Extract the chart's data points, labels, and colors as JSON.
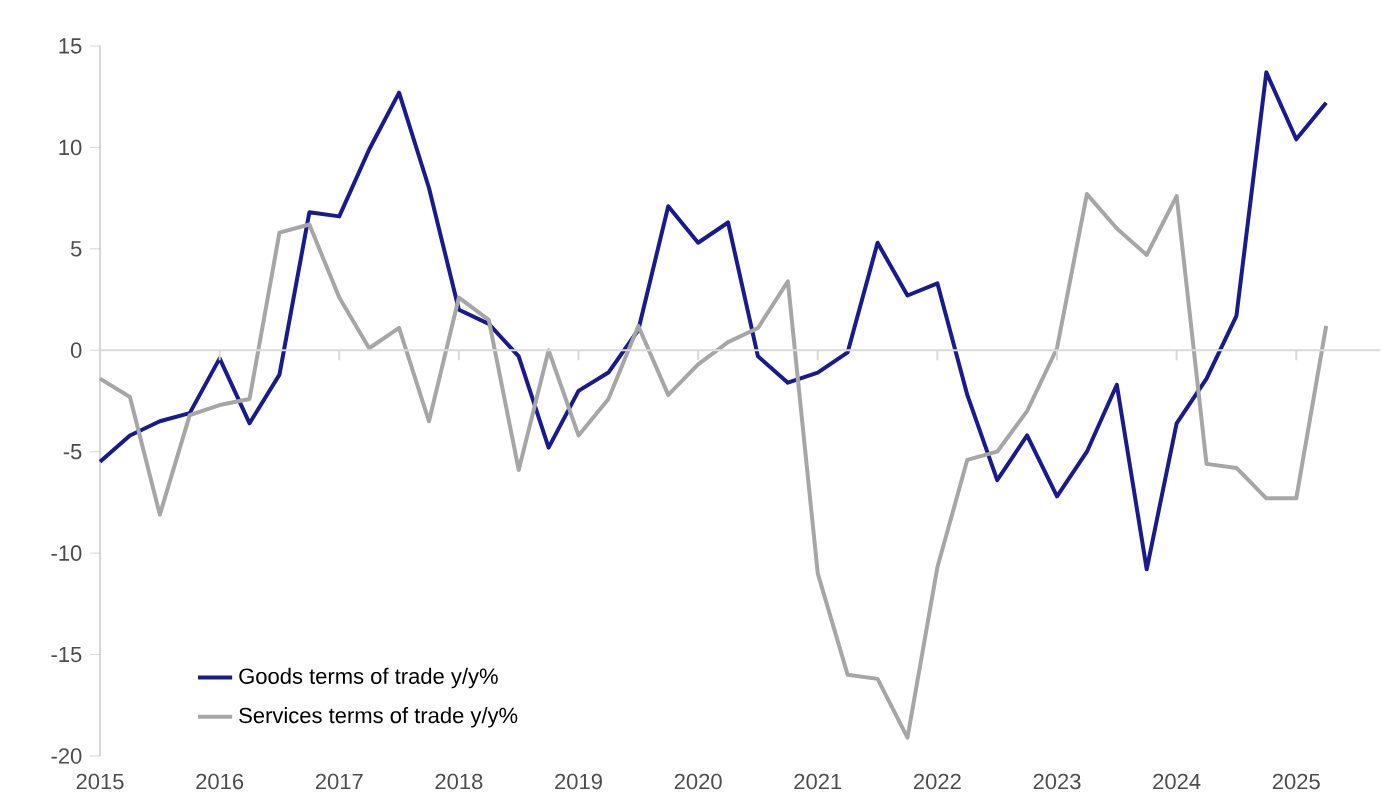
{
  "chart_data": {
    "type": "line",
    "x": [
      2015,
      2015.25,
      2015.5,
      2015.75,
      2016,
      2016.25,
      2016.5,
      2016.75,
      2017,
      2017.25,
      2017.5,
      2017.75,
      2018,
      2018.25,
      2018.5,
      2018.75,
      2019,
      2019.25,
      2019.5,
      2019.75,
      2020,
      2020.25,
      2020.5,
      2020.75,
      2021,
      2021.25,
      2021.5,
      2021.75,
      2022,
      2022.25,
      2022.5,
      2022.75,
      2023,
      2023.25,
      2023.5,
      2023.75,
      2024,
      2024.25,
      2024.5,
      2024.75,
      2025,
      2025.25
    ],
    "series": [
      {
        "name": "Goods terms of trade y/y%",
        "color": "#1a1a8c",
        "values": [
          -5.5,
          -4.2,
          -3.5,
          -3.1,
          -0.4,
          -3.6,
          -1.2,
          6.8,
          6.6,
          9.9,
          12.7,
          8.0,
          2.0,
          1.3,
          -0.3,
          -4.8,
          -2.0,
          -1.1,
          1.0,
          7.1,
          5.3,
          6.3,
          -0.3,
          -1.6,
          -1.1,
          -0.1,
          5.3,
          2.7,
          3.3,
          -2.2,
          -6.4,
          -4.2,
          -7.2,
          -5.0,
          -1.7,
          -10.8,
          -3.6,
          -1.4,
          1.7,
          13.7,
          10.4,
          12.2
        ]
      },
      {
        "name": "Services terms of trade y/y%",
        "color": "#a6a6a6",
        "values": [
          -1.4,
          -2.3,
          -8.1,
          -3.2,
          -2.7,
          -2.4,
          5.8,
          6.2,
          2.6,
          0.1,
          1.1,
          -3.5,
          2.6,
          1.5,
          -5.9,
          0.0,
          -4.2,
          -2.4,
          1.2,
          -2.2,
          -0.7,
          0.4,
          1.1,
          3.4,
          -11.0,
          -16.0,
          -16.2,
          -19.1,
          -10.7,
          -5.4,
          -5.0,
          -3.0,
          0.1,
          7.7,
          6.0,
          4.7,
          7.6,
          -5.6,
          -5.8,
          -7.3,
          -7.3,
          1.2
        ]
      }
    ],
    "xlim": [
      2015,
      2025.7
    ],
    "ylim": [
      -20,
      15
    ],
    "xticks": [
      2015,
      2016,
      2017,
      2018,
      2019,
      2020,
      2021,
      2022,
      2023,
      2024,
      2025
    ],
    "yticks": [
      -20,
      -15,
      -10,
      -5,
      0,
      5,
      10,
      15
    ],
    "ref_lines": [
      {
        "axis": "y",
        "value": 0,
        "color": "#d9d9d9",
        "line_style": "solid"
      }
    ],
    "legend": "bottom left",
    "marker": "none",
    "line_style": "solid"
  }
}
